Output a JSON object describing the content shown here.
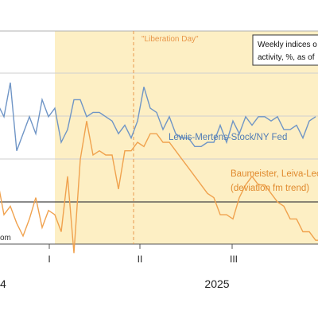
{
  "chart_data": {
    "type": "line",
    "legend_box": [
      "Weekly indices o",
      "activity, %, as of"
    ],
    "annotations": {
      "liberation_day": "\"Liberation Day\"",
      "lewis_label": "Lewis-Mertens-Stock/NY Fed",
      "baumeister_label_1": "Baumeister, Leiva-Leo",
      "baumeister_label_2": "(deviation fm trend)",
      "source_fragment": "om"
    },
    "x_ticks": [
      "I",
      "II",
      "III"
    ],
    "year_labels": [
      "4",
      "2025"
    ],
    "shaded_region": "2025-01 onward",
    "colors": {
      "lewis": "#6f95c6",
      "baumeister": "#f0a24e",
      "shade": "#fdefc4",
      "zero_line": "#444444",
      "vline": "#e8974b"
    },
    "series": [
      {
        "name": "Lewis-Mertens-Stock/NY Fed",
        "values": [
          2.3,
          2.0,
          2.8,
          1.2,
          1.6,
          2.0,
          1.6,
          2.4,
          2.0,
          2.2,
          1.4,
          1.7,
          2.4,
          2.4,
          2.0,
          2.1,
          2.1,
          2.0,
          1.9,
          1.6,
          1.8,
          1.5,
          1.9,
          2.7,
          2.2,
          2.1,
          1.7,
          2.0,
          1.6,
          1.5,
          1.5,
          1.3,
          1.3,
          1.4,
          1.4,
          1.8,
          1.4,
          1.9,
          1.6,
          2.0,
          1.8,
          2.0,
          2.0,
          1.9,
          2.0,
          1.7,
          1.7,
          1.8,
          1.5,
          1.9,
          2.0
        ]
      },
      {
        "name": "Baumeister, Leiva-Leon",
        "values": [
          0.5,
          -0.3,
          -0.1,
          -0.5,
          -0.8,
          -0.4,
          0.1,
          -0.6,
          -0.2,
          -0.3,
          -0.7,
          0.6,
          -1.2,
          1.0,
          1.9,
          1.1,
          1.2,
          1.1,
          1.1,
          0.3,
          1.2,
          1.2,
          1.4,
          1.3,
          1.6,
          1.6,
          1.4,
          1.4,
          1.2,
          1.0,
          0.8,
          0.6,
          0.4,
          0.2,
          0.1,
          -0.3,
          -0.3,
          -0.4,
          0.1,
          0.4,
          0.6,
          0.4,
          0.4,
          0.2,
          0.0,
          -0.1,
          -0.4,
          -0.4,
          -0.7,
          -0.7,
          -0.9,
          -0.9,
          -0.9,
          -1.0
        ]
      }
    ]
  }
}
